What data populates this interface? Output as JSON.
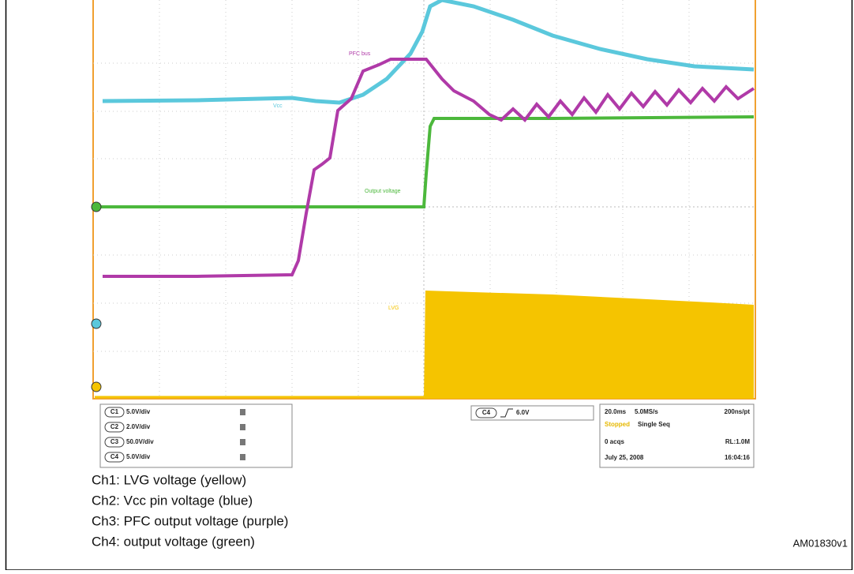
{
  "trace_labels": {
    "vcc": "Vcc",
    "pfc": "PFC bus",
    "output": "Output voltage",
    "lvg": "LVG"
  },
  "channels": [
    {
      "id": "C1",
      "scale": "5.0V/div"
    },
    {
      "id": "C2",
      "scale": "2.0V/div"
    },
    {
      "id": "C3",
      "scale": "50.0V/div"
    },
    {
      "id": "C4",
      "scale": "5.0V/div"
    }
  ],
  "trigger": {
    "channel": "C4",
    "level": "6.0V"
  },
  "acquisition": {
    "timebase": "20.0ms",
    "sample_rate": "5.0MS/s",
    "resolution": "200ns/pt",
    "state": "Stopped",
    "mode": "Single Seq",
    "acqs": "0 acqs",
    "record_length": "RL:1.0M",
    "date": "July 25, 2008",
    "time": "16:04:16"
  },
  "legend": [
    "Ch1: LVG voltage (yellow)",
    "Ch2: Vcc pin voltage (blue)",
    "Ch3: PFC output voltage (purple)",
    "Ch4: output voltage (green)"
  ],
  "figure_id": "AM01830v1"
}
